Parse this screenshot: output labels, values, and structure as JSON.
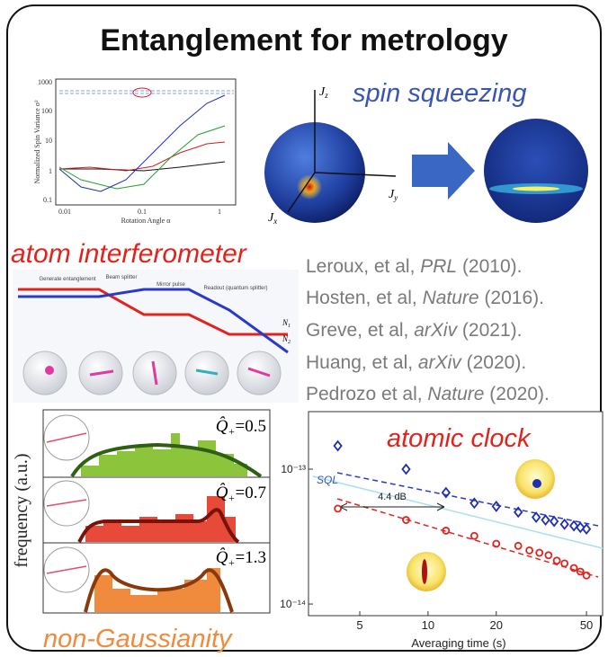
{
  "title": "Entanglement for metrology",
  "spin_variance_plot": {
    "y_label": "Normalized Spin Variance σ²",
    "x_label": "Rotation Angle α",
    "yticks": [
      "1000",
      "100",
      "10",
      "1",
      "0.1"
    ],
    "xticks": [
      "0.01",
      "0.1",
      "1"
    ]
  },
  "spin_squeezing": {
    "label": "spin squeezing",
    "axes": [
      {
        "symbol": "J",
        "sub": "z"
      },
      {
        "symbol": "J",
        "sub": "y"
      },
      {
        "symbol": "J",
        "sub": "x"
      }
    ]
  },
  "atom_interferometer": {
    "label": "atom interferometer",
    "steps": [
      "Generate entanglement",
      "Beam splitter",
      "Mirror pulse",
      "Readout (quantum splitter)"
    ],
    "outputs": [
      {
        "symbol": "N",
        "sub": "1"
      },
      {
        "symbol": "N",
        "sub": "2"
      }
    ]
  },
  "references": [
    {
      "authors": "Leroux, et al, ",
      "journal": "PRL",
      "year": " (2010)."
    },
    {
      "authors": "Hosten, et al, ",
      "journal": "Nature",
      "year": " (2016)."
    },
    {
      "authors": "Greve, et al, ",
      "journal": "arXiv",
      "year": " (2021)."
    },
    {
      "authors": "Huang, et al, ",
      "journal": "arXiv",
      "year": " (2020)."
    },
    {
      "authors": "Pedrozo et al, ",
      "journal": "Nature",
      "year": " (2020)."
    }
  ],
  "non_gaussianity": {
    "label": "non-Gaussianity",
    "y_label": "frequency (a.u.)",
    "panels": [
      {
        "symbol": "Q̂",
        "sub": "+",
        "eq": "=0.5"
      },
      {
        "symbol": "Q̂",
        "sub": "+",
        "eq": "=0.7"
      },
      {
        "symbol": "Q̂",
        "sub": "+",
        "eq": "=1.3"
      }
    ]
  },
  "atomic_clock": {
    "type": "scatter",
    "label": "atomic clock",
    "x_label": "Averaging time (s)",
    "sql_label": "SQL",
    "gain_label": "4.4 dB",
    "log_x": true,
    "log_y": true,
    "xlim": [
      2.97,
      58.9
    ],
    "xticks": [
      5,
      10,
      20,
      50
    ],
    "ylim": [
      8.2e-15,
      2.67e-13
    ],
    "yticks": [
      {
        "value": 1e-13,
        "label": "10⁻¹³"
      },
      {
        "value": 1e-14,
        "label": "10⁻¹⁴"
      }
    ],
    "series": [
      {
        "color": "#1f2fb0",
        "marker": "diamond",
        "x": [
          4,
          8,
          12,
          16,
          20,
          25,
          30,
          33,
          36,
          40,
          44,
          47,
          50
        ],
        "values": [
          1.49e-13,
          1e-13,
          6.7e-14,
          5.6e-14,
          5.3e-14,
          4.8e-14,
          4.4e-14,
          4.2e-14,
          4.1e-14,
          3.9e-14,
          3.8e-14,
          3.7e-14,
          3.6e-14
        ]
      },
      {
        "color": "#e0231d",
        "marker": "circle",
        "x": [
          4,
          8,
          12,
          16,
          20,
          25,
          28,
          31,
          34,
          37,
          40,
          44,
          47,
          50
        ],
        "values": [
          5.1e-14,
          4.2e-14,
          3.5e-14,
          3.2e-14,
          2.8e-14,
          2.7e-14,
          2.5e-14,
          2.4e-14,
          2.3e-14,
          2.1e-14,
          2e-14,
          1.85e-14,
          1.74e-14,
          1.63e-14
        ]
      }
    ]
  }
}
